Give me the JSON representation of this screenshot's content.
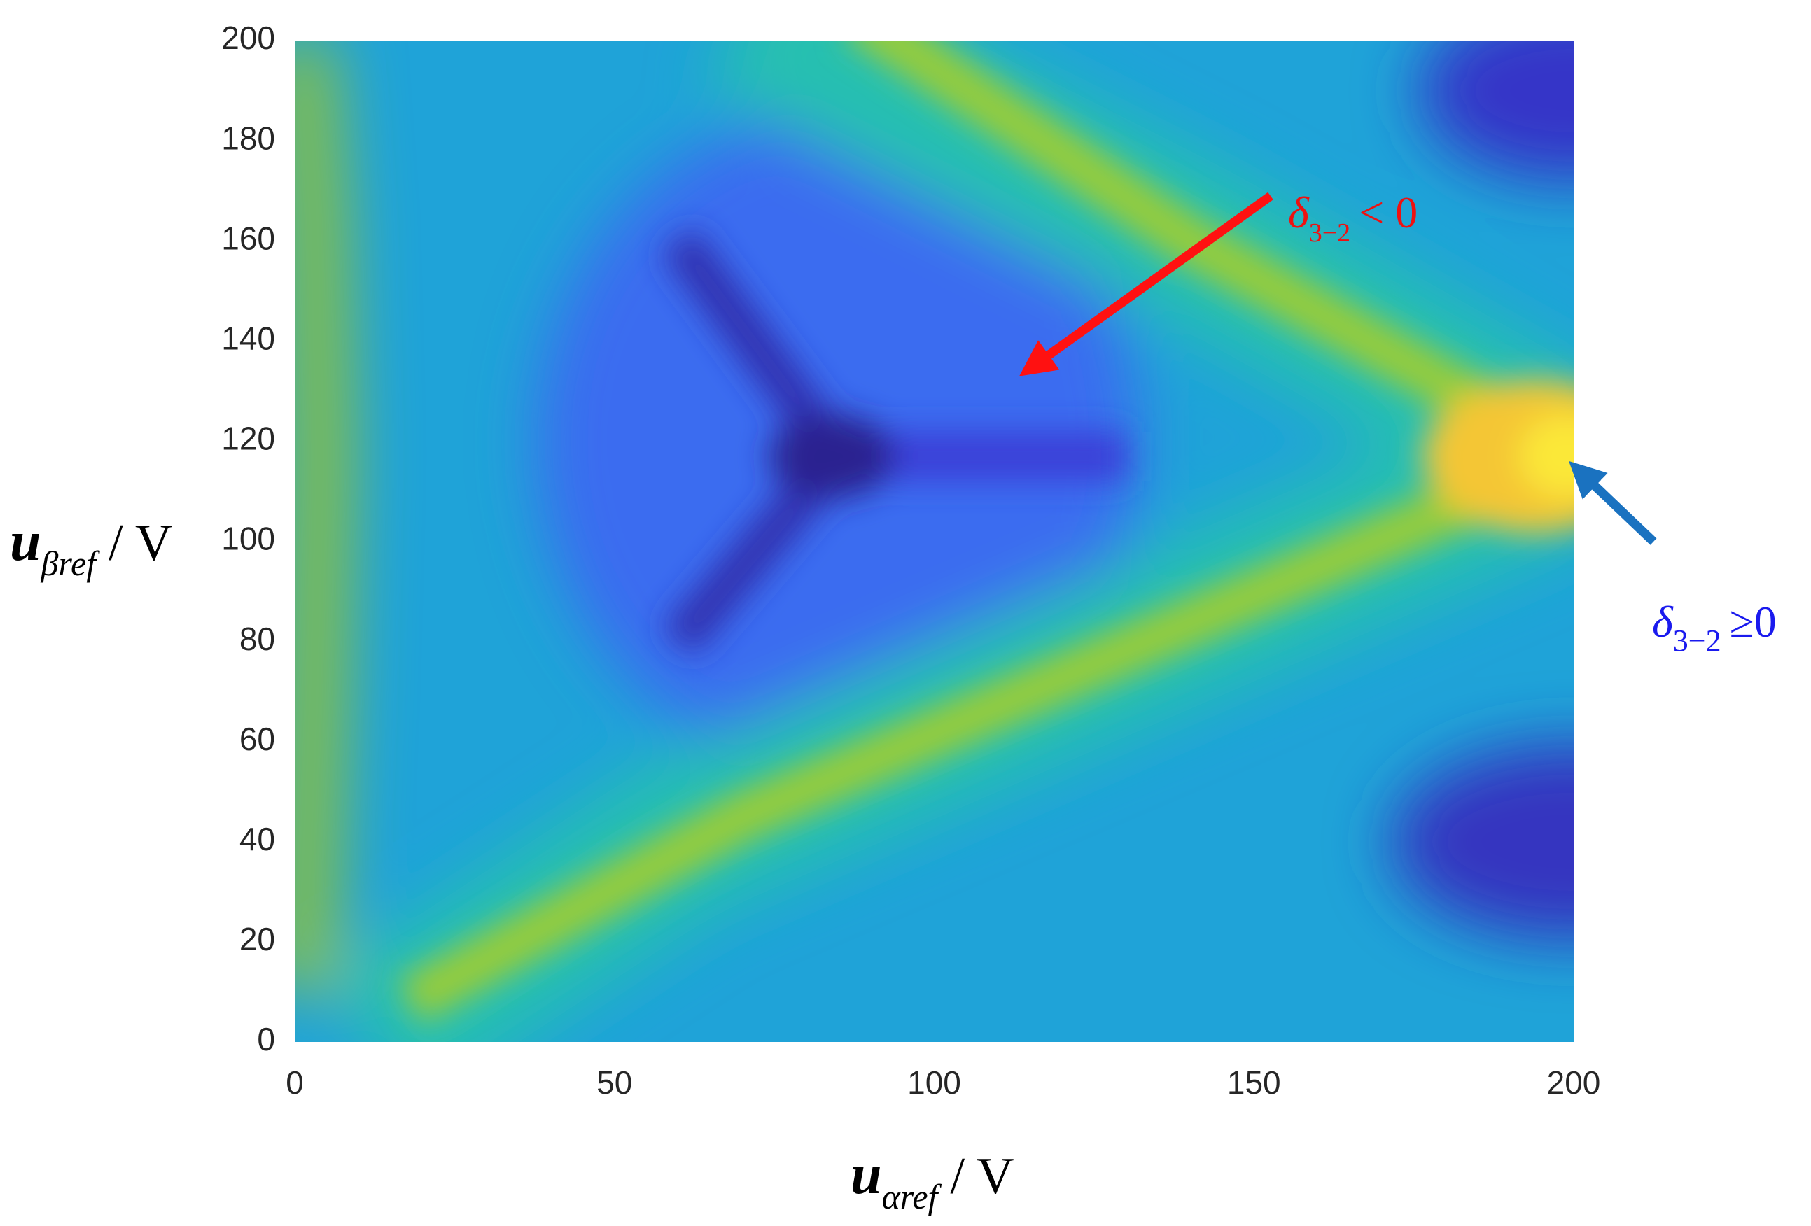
{
  "chart_data": {
    "type": "heatmap",
    "xlim": [
      0,
      200
    ],
    "xticks": [
      0,
      50,
      100,
      150,
      200
    ],
    "ylim": [
      0,
      200
    ],
    "yticks": [
      0,
      20,
      40,
      60,
      80,
      100,
      120,
      140,
      160,
      180,
      200
    ],
    "xlabel": {
      "symbol": "u",
      "sub": "αref",
      "rest": "/ V"
    },
    "ylabel": {
      "symbol": "u",
      "sub": "βref",
      "rest": "/ V"
    },
    "annotations": [
      {
        "symbol": "δ",
        "sub": "3−2",
        "rest": "< 0",
        "color": "#ee1111"
      },
      {
        "symbol": "δ",
        "sub": "3−2",
        "rest": "≥0",
        "color": "#1a1aee"
      }
    ]
  }
}
